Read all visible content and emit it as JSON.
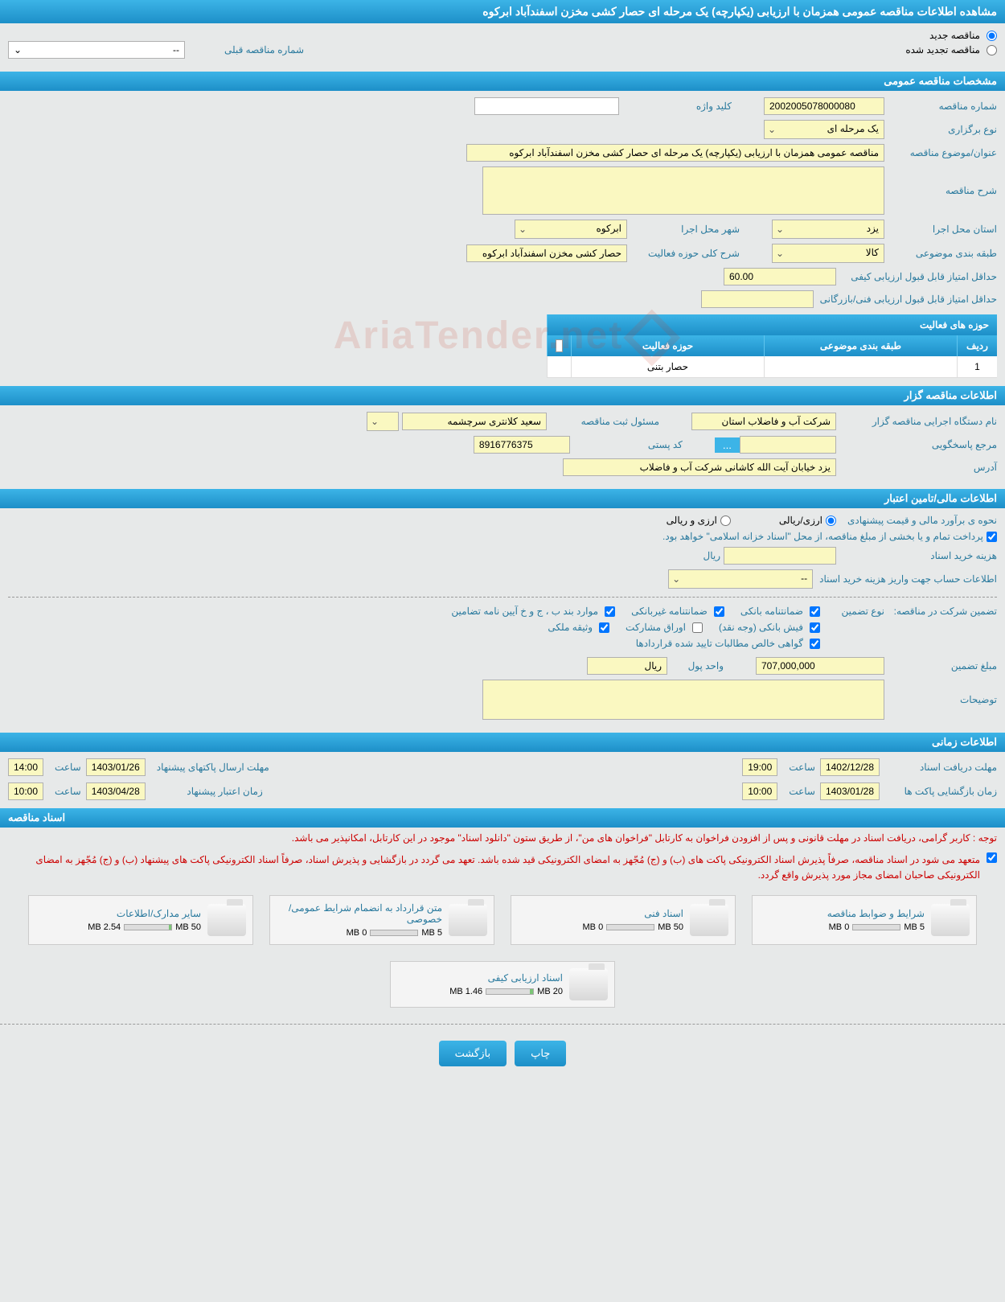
{
  "colors": {
    "header_bg_top": "#3cb4e7",
    "header_bg_bottom": "#1d8fc8",
    "field_bg": "#faf8c1",
    "page_bg": "#e7e9e9",
    "label_color": "#2a7a9e",
    "red_text": "#cc0000"
  },
  "page_title": "مشاهده اطلاعات مناقصه عمومی همزمان با ارزیابی (یکپارچه) یک مرحله ای حصار کشی مخزن اسفندآباد ابرکوه",
  "radio_new_label": "مناقصه جدید",
  "radio_renewed_label": "مناقصه تجدید شده",
  "radio_new_checked": true,
  "prev_tender_label": "شماره مناقصه قبلی",
  "prev_tender_value": "--",
  "sections": {
    "general": "مشخصات مناقصه عمومی",
    "owner": "اطلاعات مناقصه گزار",
    "financial": "اطلاعات مالی/تامین اعتبار",
    "time": "اطلاعات زمانی",
    "documents": "اسناد مناقصه"
  },
  "general": {
    "tender_no_label": "شماره مناقصه",
    "tender_no": "2002005078000080",
    "keyword_label": "کلید واژه",
    "keyword": "",
    "holding_type_label": "نوع برگزاری",
    "holding_type": "یک مرحله ای",
    "subject_label": "عنوان/موضوع مناقصه",
    "subject": "مناقصه عمومی همزمان با ارزیابی (یکپارچه) یک مرحله ای حصار کشی مخزن اسفندآباد ابرکوه",
    "description_label": "شرح مناقصه",
    "description": "",
    "exec_province_label": "استان محل اجرا",
    "exec_province": "یزد",
    "exec_city_label": "شهر محل اجرا",
    "exec_city": "ابرکوه",
    "category_label": "طبقه بندی موضوعی",
    "category": "کالا",
    "activity_desc_label": "شرح کلی حوزه فعالیت",
    "activity_desc": "حصار کشی مخزن اسفندآباد ابرکوه",
    "min_quality_score_label": "حداقل امتیاز قابل قبول ارزیابی کیفی",
    "min_quality_score": "60.00",
    "min_tech_score_label": "حداقل امتیاز قابل قبول ارزیابی فنی/بازرگانی",
    "min_tech_score": "",
    "activities_title": "حوزه های فعالیت",
    "activities_headers": {
      "seq": "ردیف",
      "cat": "طبقه بندی موضوعی",
      "act": "حوزه فعالیت"
    },
    "activities": [
      {
        "seq": "1",
        "cat": "",
        "act": "حصار بتنی"
      }
    ]
  },
  "owner": {
    "org_label": "نام دستگاه اجرایی مناقصه گزار",
    "org": "شرکت آب و فاضلاب استان",
    "responsible_label": "مسئول ثبت مناقصه",
    "responsible": "سعید کلانتری سرچشمه",
    "responder_label": "مرجع پاسخگویی",
    "responder": "",
    "postcode_label": "کد پستی",
    "postcode": "8916776375",
    "address_label": "آدرس",
    "address": "یزد خیابان آیت الله کاشانی شرکت آب و فاضلاب"
  },
  "financial": {
    "estimate_type_label": "نحوه ی برآورد مالی و قیمت پیشنهادی",
    "rial_arzi_option": "ارزی/ریالی",
    "arzi_rial_option": "ارزی و ریالی",
    "rial_checked": true,
    "treasury_note": "پرداخت تمام و یا بخشی از مبلغ مناقصه، از محل \"اسناد خزانه اسلامی\" خواهد بود.",
    "treasury_checked": true,
    "doc_purchase_cost_label": "هزینه خرید اسناد",
    "doc_purchase_cost": "",
    "rial_unit": "ریال",
    "deposit_account_label": "اطلاعات حساب جهت واریز هزینه خرید اسناد",
    "deposit_account": "--",
    "guarantee_label": "تضمین شرکت در مناقصه:",
    "guarantee_type_label": "نوع تضمین",
    "gt_bank": "ضمانتنامه بانکی",
    "gt_nonbank": "ضمانتنامه غیربانکی",
    "gt_items_bj": "موارد بند ب ، ج و خ آیین نامه تضامین",
    "gt_cash": "فیش بانکی (وجه نقد)",
    "gt_securities": "اوراق مشارکت",
    "gt_property": "وثیقه ملکی",
    "gt_receivables": "گواهی خالص مطالبات تایید شده قراردادها",
    "gt_bank_checked": true,
    "gt_nonbank_checked": true,
    "gt_items_bj_checked": true,
    "gt_cash_checked": true,
    "gt_securities_checked": false,
    "gt_property_checked": true,
    "gt_receivables_checked": true,
    "guarantee_amount_label": "مبلغ تضمین",
    "guarantee_amount": "707,000,000",
    "currency_unit_label": "واحد پول",
    "currency_unit": "ریال",
    "notes_label": "توضیحات",
    "notes": ""
  },
  "time": {
    "doc_receive_label": "مهلت دریافت اسناد",
    "doc_receive_date": "1402/12/28",
    "doc_receive_hour_label": "ساعت",
    "doc_receive_hour": "19:00",
    "envelope_deadline_label": "مهلت ارسال پاکتهای پیشنهاد",
    "envelope_deadline_date": "1403/01/26",
    "envelope_deadline_hour": "14:00",
    "open_label": "زمان بازگشایی پاکت ها",
    "open_date": "1403/01/28",
    "open_hour": "10:00",
    "validity_label": "زمان اعتبار پیشنهاد",
    "validity_date": "1403/04/28",
    "validity_hour": "10:00",
    "hour_label": "ساعت"
  },
  "documents": {
    "note1": "توجه : کاربر گرامی، دریافت اسناد در مهلت قانونی و پس از افزودن فراخوان به کارتابل \"فراخوان های من\"، از طریق ستون \"دانلود اسناد\" موجود در این کارتابل، امکانپذیر می باشد.",
    "note2": "متعهد می شود در اسناد مناقصه، صرفاً پذیرش اسناد الکترونیکی پاکت های (ب) و (ج) مُجّهز به امضای الکترونیکی قید شده باشد. تعهد می گردد در بازگشایی و پذیرش اسناد، صرفاً اسناد الکترونیکی پاکت های پیشنهاد (ب) و (ج) مُجّهز به امضای الکترونیکی صاحبان امضای مجاز مورد پذیرش واقع گردد.",
    "note2_checked": true,
    "files": [
      {
        "title": "شرایط و ضوابط مناقصه",
        "max": "5 MB",
        "used": "0 MB",
        "pct": 0
      },
      {
        "title": "اسناد فنی",
        "max": "50 MB",
        "used": "0 MB",
        "pct": 0
      },
      {
        "title": "متن قرارداد به انضمام شرایط عمومی/خصوصی",
        "max": "5 MB",
        "used": "0 MB",
        "pct": 0
      },
      {
        "title": "سایر مدارک/اطلاعات",
        "max": "50 MB",
        "used": "2.54 MB",
        "pct": 5
      },
      {
        "title": "اسناد ارزیابی کیفی",
        "max": "20 MB",
        "used": "1.46 MB",
        "pct": 7
      }
    ]
  },
  "buttons": {
    "print": "چاپ",
    "back": "بازگشت"
  },
  "watermark": "AriaTender.net"
}
